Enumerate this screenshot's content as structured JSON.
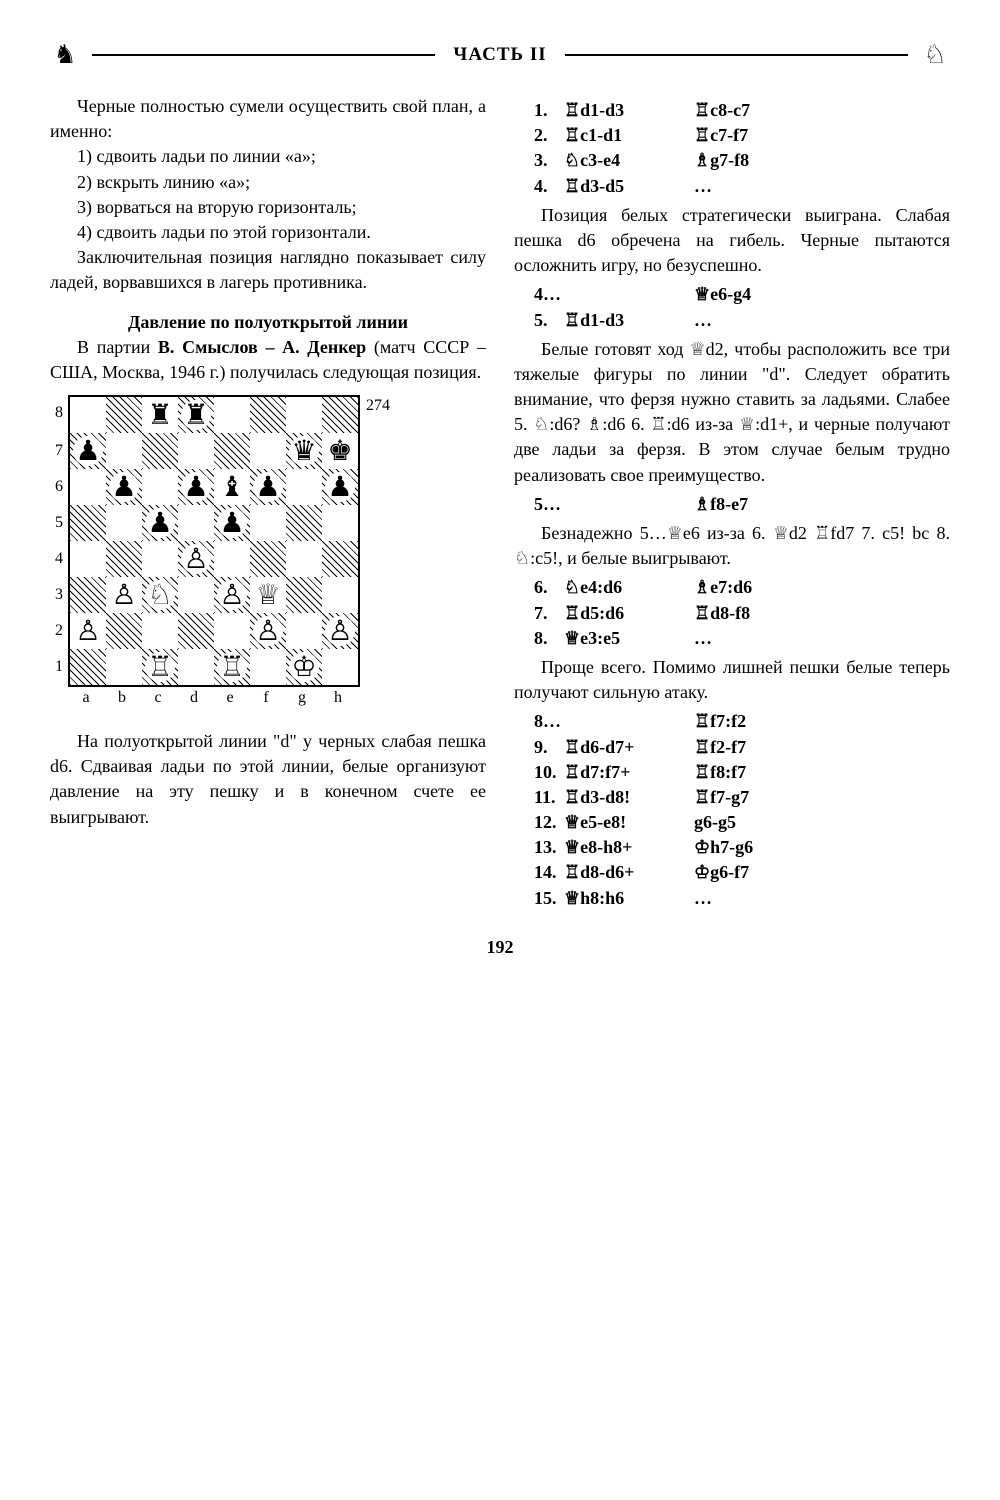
{
  "header": {
    "title": "ЧАСТЬ II"
  },
  "page_number": "192",
  "diagram": {
    "number": "274",
    "ranks": [
      "8",
      "7",
      "6",
      "5",
      "4",
      "3",
      "2",
      "1"
    ],
    "files": [
      "a",
      "b",
      "c",
      "d",
      "e",
      "f",
      "g",
      "h"
    ],
    "board": [
      [
        "",
        "",
        "♜",
        "♜",
        "",
        "",
        "",
        ""
      ],
      [
        "♟",
        "",
        "",
        "",
        "",
        "",
        "♛",
        "♚"
      ],
      [
        "",
        "♟",
        "",
        "♟",
        "♝",
        "♟",
        "",
        "♟"
      ],
      [
        "",
        "",
        "♟",
        "",
        "♟",
        "",
        "",
        ""
      ],
      [
        "",
        "",
        "",
        "♙",
        "",
        "",
        "",
        ""
      ],
      [
        "",
        "♙",
        "♘",
        "",
        "♙",
        "♕",
        "",
        ""
      ],
      [
        "♙",
        "",
        "",
        "",
        "",
        "♙",
        "",
        "♙"
      ],
      [
        "",
        "",
        "♖",
        "",
        "♖",
        "",
        "♔",
        ""
      ]
    ]
  },
  "left": {
    "p1": "Черные полностью сумели осуществить свой план, а имен­но:",
    "p2": "1) сдвоить ладьи по линии «a»;",
    "p3": "2) вскрыть линию «a»;",
    "p4": "3) ворваться на вторую гори­зонталь;",
    "p5": "4) сдвоить ладьи по этой гори­зонтали.",
    "p6": "Заключительная позиция на­глядно показывает силу ладей, ворвавшихся в лагерь против­ника.",
    "section": "Давление по полуоткрытой линии",
    "p7a": "В партии ",
    "p7b": "В. Смыслов – А. Ден­кер",
    "p7c": " (матч СССР – США, Москва, 1946 г.) получилась следующая позиция.",
    "p8": "На полуоткрытой линии \"d\" у черных слабая пешка d6. Сдваивая ладьи по этой линии, белые организуют давление на эту пешку и в конечном счете ее выигрывают."
  },
  "right": {
    "moves1": [
      {
        "n": "1.",
        "w": "♖d1-d3",
        "b": "♖c8-c7"
      },
      {
        "n": "2.",
        "w": "♖c1-d1",
        "b": "♖c7-f7"
      },
      {
        "n": "3.",
        "w": "♘c3-e4",
        "b": "♗g7-f8"
      },
      {
        "n": "4.",
        "w": "♖d3-d5",
        "b": "…"
      }
    ],
    "p1": "Позиция белых стратегически выиграна. Слабая пешка d6 обре­чена на гибель. Черные пытаются осложнить игру, но безуспешно.",
    "moves2": [
      {
        "n": "4…",
        "w": "",
        "b": "♕e6-g4"
      },
      {
        "n": "5.",
        "w": "♖d1-d3",
        "b": "…"
      }
    ],
    "p2": "Белые готовят ход ♕d2, что­бы расположить все три тяжелые фигуры по линии \"d\". Следует об­ратить внимание, что ферзя нуж­но ставить за ладьями. Слабее 5. ♘:d6? ♗:d6 6. ♖:d6 из-за ♕:d1+, и черные получают две ладьи за ферзя. В этом случае белым труд­но реализовать свое преимуще­ство.",
    "moves3": [
      {
        "n": "5…",
        "w": "",
        "b": "♗f8-e7"
      }
    ],
    "p3": "Безнадежно 5…♕e6 из-за 6. ♕d2 ♖fd7 7. c5! bc 8. ♘:c5!, и бе­лые выигрывают.",
    "moves4": [
      {
        "n": "6.",
        "w": "♘e4:d6",
        "b": "♗e7:d6"
      },
      {
        "n": "7.",
        "w": "♖d5:d6",
        "b": "♖d8-f8"
      },
      {
        "n": "8.",
        "w": "♕e3:e5",
        "b": "…"
      }
    ],
    "p4": "Проще всего. Помимо лишней пешки белые теперь получают сильную атаку.",
    "moves5": [
      {
        "n": "8…",
        "w": "",
        "b": "♖f7:f2"
      },
      {
        "n": "9.",
        "w": "♖d6-d7+",
        "b": "♖f2-f7"
      },
      {
        "n": "10.",
        "w": "♖d7:f7+",
        "b": "♖f8:f7"
      },
      {
        "n": "11.",
        "w": "♖d3-d8!",
        "b": "♖f7-g7"
      },
      {
        "n": "12.",
        "w": "♕e5-e8!",
        "b": "g6-g5"
      },
      {
        "n": "13.",
        "w": "♕e8-h8+",
        "b": "♔h7-g6"
      },
      {
        "n": "14.",
        "w": "♖d8-d6+",
        "b": "♔g6-f7"
      },
      {
        "n": "15.",
        "w": "♕h8:h6",
        "b": "…"
      }
    ]
  }
}
